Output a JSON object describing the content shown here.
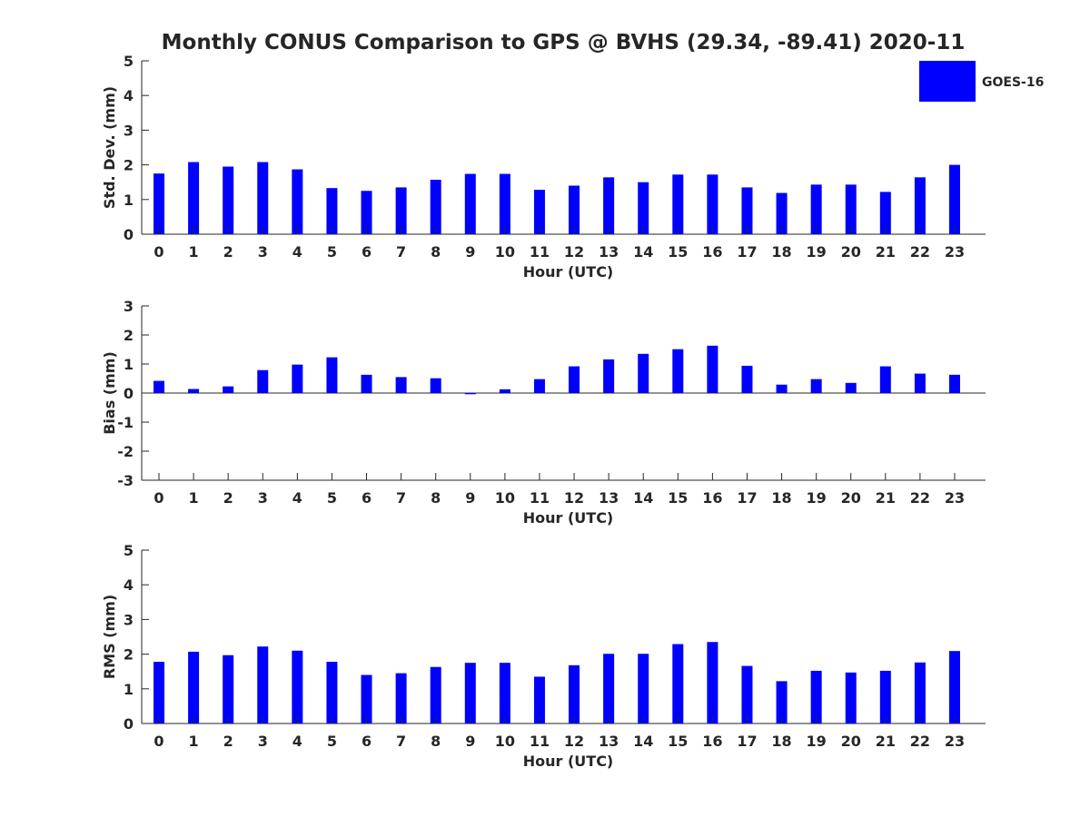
{
  "title": "Monthly CONUS Comparison to GPS @ BVHS (29.34, -89.41) 2020-11",
  "legend": {
    "label": "GOES-16",
    "color": "#0000ff",
    "placement": "top-right"
  },
  "chart_data": [
    {
      "type": "bar",
      "title": "Monthly CONUS Comparison to GPS @ BVHS (29.34, -89.41) 2020-11",
      "xlabel": "Hour (UTC)",
      "ylabel": "Std. Dev. (mm)",
      "ylim": [
        0,
        5
      ],
      "yticks": [
        0,
        1,
        2,
        3,
        4,
        5
      ],
      "categories": [
        "0",
        "1",
        "2",
        "3",
        "4",
        "5",
        "6",
        "7",
        "8",
        "9",
        "10",
        "11",
        "12",
        "13",
        "14",
        "15",
        "16",
        "17",
        "18",
        "19",
        "20",
        "21",
        "22",
        "23"
      ],
      "series": [
        {
          "name": "GOES-16",
          "color": "#0000ff",
          "values": [
            1.75,
            2.08,
            1.95,
            2.08,
            1.87,
            1.33,
            1.25,
            1.35,
            1.57,
            1.74,
            1.74,
            1.28,
            1.4,
            1.64,
            1.5,
            1.72,
            1.72,
            1.35,
            1.19,
            1.43,
            1.43,
            1.22,
            1.64,
            2.0
          ]
        }
      ]
    },
    {
      "type": "bar",
      "xlabel": "Hour (UTC)",
      "ylabel": "Bias (mm)",
      "ylim": [
        -3,
        3
      ],
      "yticks": [
        -3,
        -2,
        -1,
        0,
        1,
        2,
        3
      ],
      "categories": [
        "0",
        "1",
        "2",
        "3",
        "4",
        "5",
        "6",
        "7",
        "8",
        "9",
        "10",
        "11",
        "12",
        "13",
        "14",
        "15",
        "16",
        "17",
        "18",
        "19",
        "20",
        "21",
        "22",
        "23"
      ],
      "series": [
        {
          "name": "GOES-16",
          "color": "#0000ff",
          "values": [
            0.42,
            0.14,
            0.23,
            0.79,
            0.98,
            1.23,
            0.63,
            0.55,
            0.51,
            -0.04,
            0.13,
            0.48,
            0.92,
            1.16,
            1.35,
            1.51,
            1.63,
            0.94,
            0.29,
            0.48,
            0.35,
            0.92,
            0.67,
            0.63
          ]
        }
      ]
    },
    {
      "type": "bar",
      "xlabel": "Hour (UTC)",
      "ylabel": "RMS (mm)",
      "ylim": [
        0,
        5
      ],
      "yticks": [
        0,
        1,
        2,
        3,
        4,
        5
      ],
      "categories": [
        "0",
        "1",
        "2",
        "3",
        "4",
        "5",
        "6",
        "7",
        "8",
        "9",
        "10",
        "11",
        "12",
        "13",
        "14",
        "15",
        "16",
        "17",
        "18",
        "19",
        "20",
        "21",
        "22",
        "23"
      ],
      "series": [
        {
          "name": "GOES-16",
          "color": "#0000ff",
          "values": [
            1.78,
            2.07,
            1.97,
            2.22,
            2.1,
            1.78,
            1.4,
            1.45,
            1.63,
            1.75,
            1.75,
            1.35,
            1.68,
            2.01,
            2.01,
            2.29,
            2.35,
            1.66,
            1.22,
            1.52,
            1.47,
            1.52,
            1.76,
            2.09
          ]
        }
      ]
    }
  ]
}
